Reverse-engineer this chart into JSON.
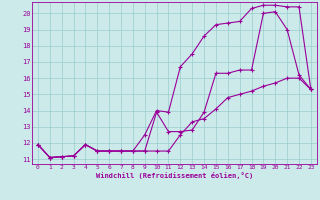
{
  "xlabel": "Windchill (Refroidissement éolien,°C)",
  "bg_color": "#cceaea",
  "line_color": "#990099",
  "grid_color": "#99cccc",
  "xlim": [
    -0.5,
    23.5
  ],
  "ylim": [
    10.7,
    20.7
  ],
  "yticks": [
    11,
    12,
    13,
    14,
    15,
    16,
    17,
    18,
    19,
    20
  ],
  "xticks": [
    0,
    1,
    2,
    3,
    4,
    5,
    6,
    7,
    8,
    9,
    10,
    11,
    12,
    13,
    14,
    15,
    16,
    17,
    18,
    19,
    20,
    21,
    22,
    23
  ],
  "line1_x": [
    0,
    1,
    2,
    3,
    4,
    5,
    6,
    7,
    8,
    9,
    10,
    11,
    12,
    13,
    14,
    15,
    16,
    17,
    18,
    19,
    20,
    21,
    22,
    23
  ],
  "line1_y": [
    11.9,
    11.1,
    11.15,
    11.2,
    11.9,
    11.5,
    11.5,
    11.5,
    11.5,
    11.5,
    13.9,
    12.7,
    12.7,
    12.8,
    13.9,
    16.3,
    16.3,
    16.5,
    16.5,
    20.0,
    20.1,
    19.0,
    16.2,
    15.3
  ],
  "line2_x": [
    0,
    1,
    2,
    3,
    4,
    5,
    6,
    7,
    8,
    9,
    10,
    11,
    12,
    13,
    14,
    15,
    16,
    17,
    18,
    19,
    20,
    21,
    22,
    23
  ],
  "line2_y": [
    11.9,
    11.1,
    11.15,
    11.2,
    11.9,
    11.5,
    11.5,
    11.5,
    11.5,
    12.5,
    14.0,
    13.9,
    16.7,
    17.5,
    18.6,
    19.3,
    19.4,
    19.5,
    20.3,
    20.5,
    20.5,
    20.4,
    20.4,
    15.3
  ],
  "line3_x": [
    0,
    1,
    2,
    3,
    4,
    5,
    6,
    7,
    8,
    9,
    10,
    11,
    12,
    13,
    14,
    15,
    16,
    17,
    18,
    19,
    20,
    21,
    22,
    23
  ],
  "line3_y": [
    11.9,
    11.1,
    11.15,
    11.2,
    11.9,
    11.5,
    11.5,
    11.5,
    11.5,
    11.5,
    11.5,
    11.5,
    12.5,
    13.3,
    13.5,
    14.1,
    14.8,
    15.0,
    15.2,
    15.5,
    15.7,
    16.0,
    16.0,
    15.3
  ]
}
